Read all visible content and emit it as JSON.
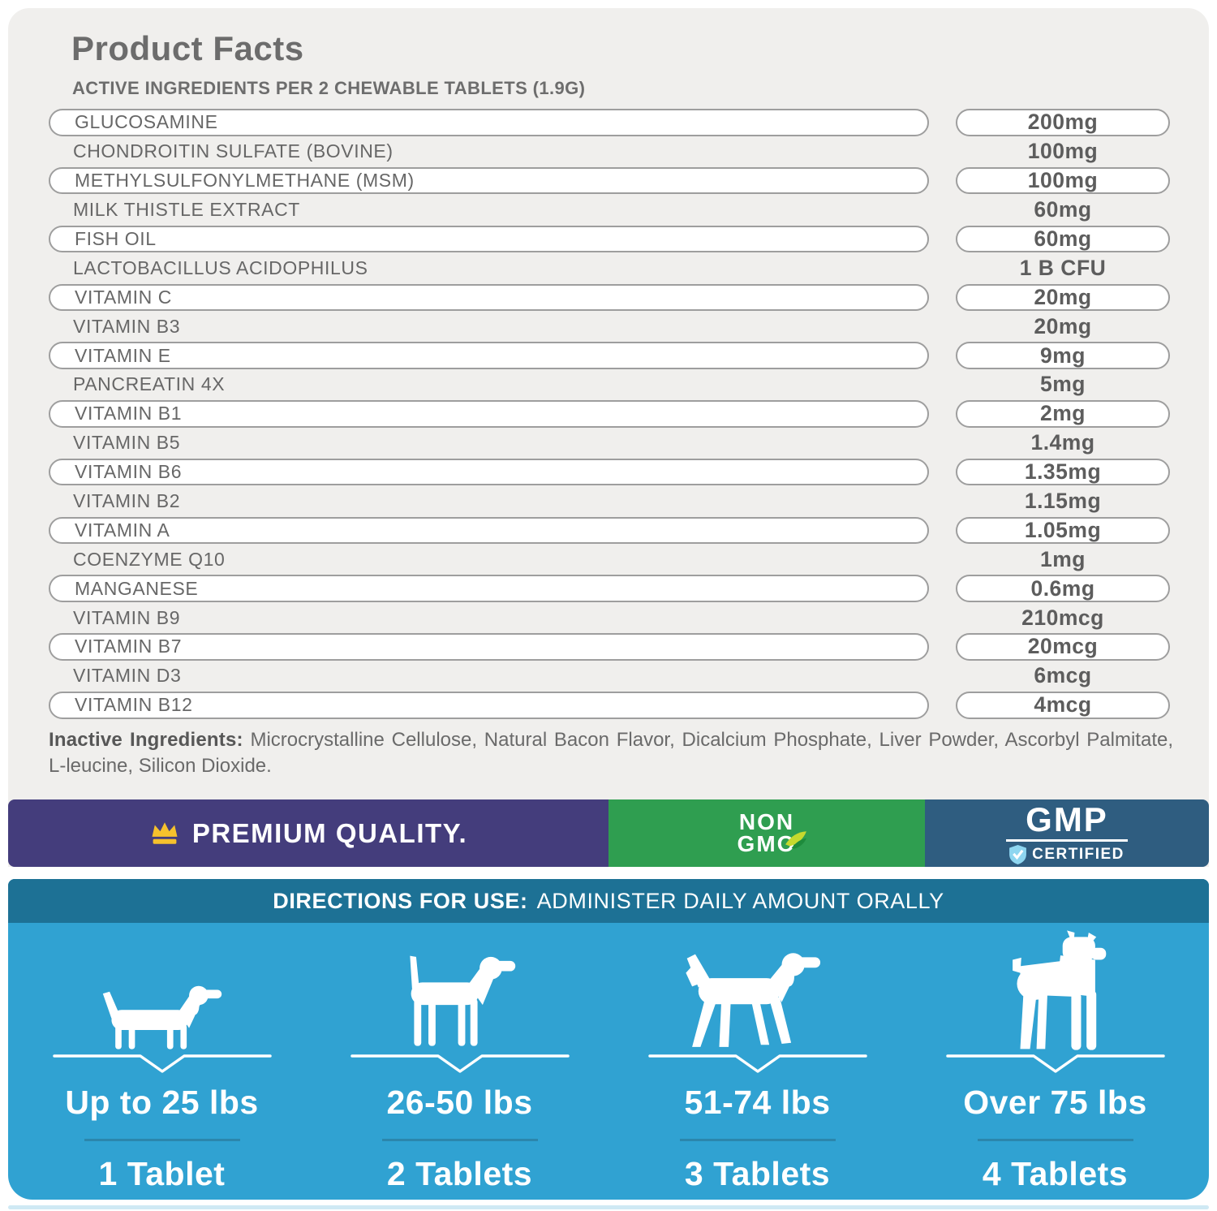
{
  "header": {
    "title": "Product Facts",
    "subtitle": "ACTIVE INGREDIENTS PER 2 CHEWABLE TABLETS (1.9G)"
  },
  "ingredients": [
    {
      "name": "GLUCOSAMINE",
      "amount": "200mg",
      "pill": true
    },
    {
      "name": "CHONDROITIN SULFATE (BOVINE)",
      "amount": "100mg",
      "pill": false
    },
    {
      "name": "METHYLSULFONYLMETHANE (MSM)",
      "amount": "100mg",
      "pill": true
    },
    {
      "name": "MILK THISTLE EXTRACT",
      "amount": "60mg",
      "pill": false
    },
    {
      "name": "FISH OIL",
      "amount": "60mg",
      "pill": true
    },
    {
      "name": "LACTOBACILLUS ACIDOPHILUS",
      "amount": "1 B CFU",
      "pill": false
    },
    {
      "name": "VITAMIN C",
      "amount": "20mg",
      "pill": true
    },
    {
      "name": "VITAMIN B3",
      "amount": "20mg",
      "pill": false
    },
    {
      "name": "VITAMIN E",
      "amount": "9mg",
      "pill": true
    },
    {
      "name": "PANCREATIN 4X",
      "amount": "5mg",
      "pill": false
    },
    {
      "name": "VITAMIN B1",
      "amount": "2mg",
      "pill": true
    },
    {
      "name": "VITAMIN B5",
      "amount": "1.4mg",
      "pill": false
    },
    {
      "name": "VITAMIN B6",
      "amount": "1.35mg",
      "pill": true
    },
    {
      "name": "VITAMIN B2",
      "amount": "1.15mg",
      "pill": false
    },
    {
      "name": "VITAMIN A",
      "amount": "1.05mg",
      "pill": true
    },
    {
      "name": "COENZYME Q10",
      "amount": "1mg",
      "pill": false
    },
    {
      "name": "MANGANESE",
      "amount": "0.6mg",
      "pill": true
    },
    {
      "name": "VITAMIN B9",
      "amount": "210mcg",
      "pill": false
    },
    {
      "name": "VITAMIN B7",
      "amount": "20mcg",
      "pill": true
    },
    {
      "name": "VITAMIN D3",
      "amount": "6mcg",
      "pill": false
    },
    {
      "name": "VITAMIN B12",
      "amount": "4mcg",
      "pill": true
    }
  ],
  "inactive": {
    "label": "Inactive Ingredients:",
    "text": "Microcrystalline Cellulose, Natural Bacon Flavor, Dicalcium Phosphate, Liver Powder, Ascorbyl Palmitate, L-leucine, Silicon Dioxide."
  },
  "badges": {
    "premium": {
      "label": "PREMIUM QUALITY.",
      "icon": "crown-icon",
      "bg": "#443d7c",
      "crown_color": "#f6c12d"
    },
    "non_gmo": {
      "line1": "NON",
      "line2": "GMO",
      "icon": "leaf-icon",
      "bg": "#2f9e50"
    },
    "gmp": {
      "title": "GMP",
      "subtitle": "CERTIFIED",
      "icon": "shield-check-icon",
      "bg": "#2f5d80",
      "shield_color": "#8ed6f0"
    }
  },
  "directions": {
    "heading_bold": "DIRECTIONS FOR USE:",
    "heading_rest": "ADMINISTER DAILY AMOUNT ORALLY",
    "header_bg": "#1d7195",
    "body_bg": "#30a2d2",
    "divider_color": "#2b86ac",
    "columns": [
      {
        "dog": "dachshund-silhouette",
        "weight": "Up to 25 lbs",
        "dose": "1 Tablet"
      },
      {
        "dog": "beagle-silhouette",
        "weight": "26-50 lbs",
        "dose": "2 Tablets"
      },
      {
        "dog": "retriever-silhouette",
        "weight": "51-74 lbs",
        "dose": "3 Tablets"
      },
      {
        "dog": "boxer-silhouette",
        "weight": "Over 75 lbs",
        "dose": "4 Tablets"
      }
    ]
  },
  "colors": {
    "card_bg": "#f0efed",
    "pill_border": "#9e9e9e",
    "text_gray": "#676767"
  }
}
